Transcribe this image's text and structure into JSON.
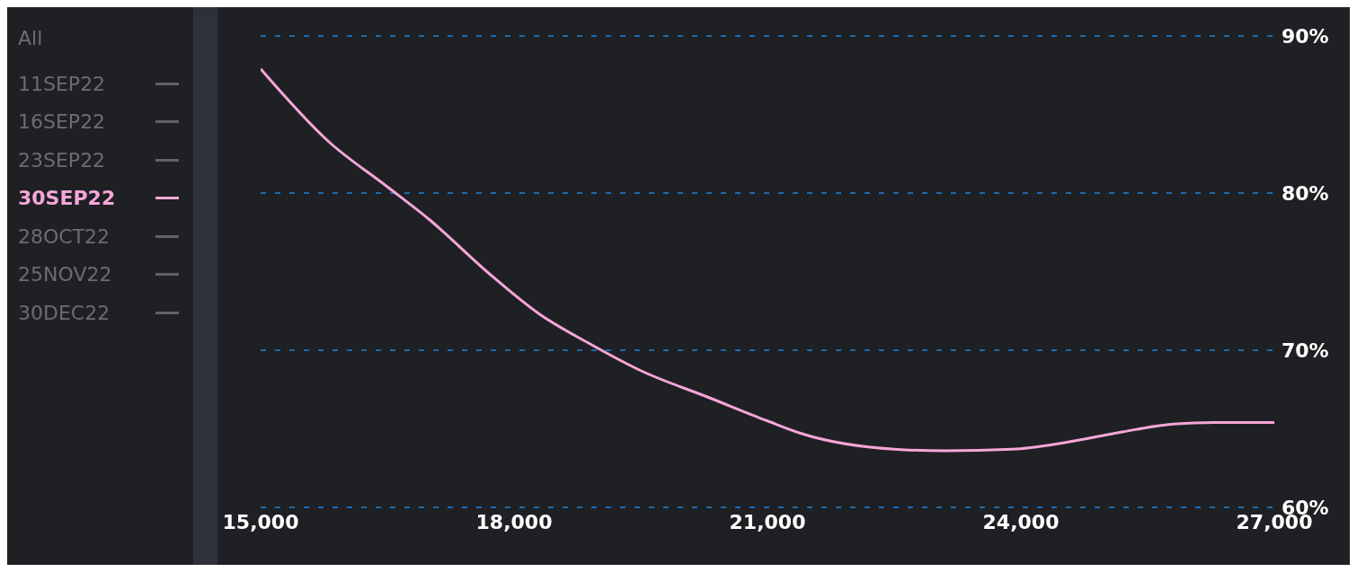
{
  "chart_data": {
    "type": "line",
    "legend_title": "All",
    "legend": "left",
    "grid": "y",
    "line_style": "solid",
    "marker": "none",
    "x": [
      15000,
      15800,
      16500,
      17000,
      17700,
      18300,
      18900,
      19500,
      20300,
      21000,
      21400,
      22500,
      23100,
      23900,
      24500,
      25200,
      25800,
      26300,
      27000
    ],
    "series": [
      {
        "name": "11SEP22",
        "color": "#5f6166",
        "values": [
          null,
          null,
          null,
          null,
          null,
          null,
          null,
          null,
          null,
          null,
          null,
          null,
          null,
          null,
          null,
          null,
          null,
          null,
          null
        ]
      },
      {
        "name": "16SEP22",
        "color": "#5f6166",
        "values": [
          null,
          null,
          null,
          null,
          null,
          null,
          null,
          null,
          null,
          null,
          null,
          null,
          null,
          null,
          null,
          null,
          null,
          null,
          null
        ]
      },
      {
        "name": "23SEP22",
        "color": "#5f6166",
        "values": [
          null,
          null,
          null,
          null,
          null,
          null,
          null,
          null,
          null,
          null,
          null,
          null,
          null,
          null,
          null,
          null,
          null,
          null,
          null
        ]
      },
      {
        "name": "30SEP22",
        "color": "#f6a6d8",
        "values": [
          87.9,
          83.3,
          80.4,
          78.3,
          74.9,
          72.3,
          70.4,
          68.7,
          67.0,
          65.5,
          64.7,
          63.7,
          63.6,
          63.7,
          64.1,
          64.8,
          65.3,
          65.4,
          65.4
        ]
      },
      {
        "name": "28OCT22",
        "color": "#5f6166",
        "values": [
          null,
          null,
          null,
          null,
          null,
          null,
          null,
          null,
          null,
          null,
          null,
          null,
          null,
          null,
          null,
          null,
          null,
          null,
          null
        ]
      },
      {
        "name": "25NOV22",
        "color": "#5f6166",
        "values": [
          null,
          null,
          null,
          null,
          null,
          null,
          null,
          null,
          null,
          null,
          null,
          null,
          null,
          null,
          null,
          null,
          null,
          null,
          null
        ]
      },
      {
        "name": "30DEC22",
        "color": "#5f6166",
        "values": [
          null,
          null,
          null,
          null,
          null,
          null,
          null,
          null,
          null,
          null,
          null,
          null,
          null,
          null,
          null,
          null,
          null,
          null,
          null
        ]
      }
    ],
    "xlim": [
      15000,
      27000
    ],
    "xticks": [
      {
        "value": 15000,
        "label": "15,000"
      },
      {
        "value": 18000,
        "label": "18,000"
      },
      {
        "value": 21000,
        "label": "21,000"
      },
      {
        "value": 24000,
        "label": "24,000"
      },
      {
        "value": 27000,
        "label": "27,000"
      }
    ],
    "ylim": [
      60,
      90
    ],
    "yticks": [
      {
        "value": 60,
        "label": "60%"
      },
      {
        "value": 70,
        "label": "70%"
      },
      {
        "value": 80,
        "label": "80%"
      },
      {
        "value": 90,
        "label": "90%"
      }
    ]
  }
}
